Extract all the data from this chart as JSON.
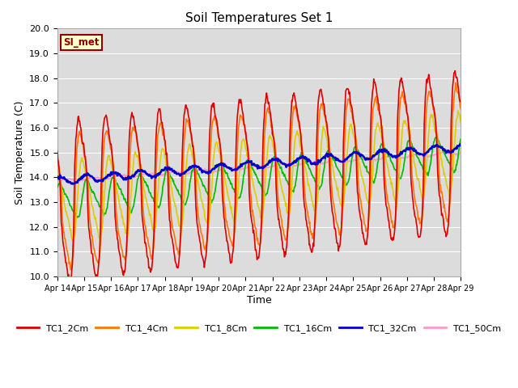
{
  "title": "Soil Temperatures Set 1",
  "ylabel": "Soil Temperature (C)",
  "xlabel": "Time",
  "ylim": [
    10.0,
    20.0
  ],
  "yticks": [
    10.0,
    11.0,
    12.0,
    13.0,
    14.0,
    15.0,
    16.0,
    17.0,
    18.0,
    19.0,
    20.0
  ],
  "xtick_labels": [
    "Apr 14",
    "Apr 15",
    "Apr 16",
    "Apr 17",
    "Apr 18",
    "Apr 19",
    "Apr 20",
    "Apr 21",
    "Apr 22",
    "Apr 23",
    "Apr 24",
    "Apr 25",
    "Apr 26",
    "Apr 27",
    "Apr 28",
    "Apr 29"
  ],
  "plot_bg": "#dcdcdc",
  "fig_bg": "#ffffff",
  "annotation_text": "SI_met",
  "annotation_bg": "#ffffcc",
  "annotation_border": "#8B0000",
  "series": {
    "TC1_2Cm": {
      "color": "#dd0000",
      "lw": 1.2
    },
    "TC1_4Cm": {
      "color": "#ff7700",
      "lw": 1.2
    },
    "TC1_8Cm": {
      "color": "#ddcc00",
      "lw": 1.2
    },
    "TC1_16Cm": {
      "color": "#00bb00",
      "lw": 1.2
    },
    "TC1_32Cm": {
      "color": "#0000cc",
      "lw": 1.8
    },
    "TC1_50Cm": {
      "color": "#ff99cc",
      "lw": 1.2
    }
  }
}
